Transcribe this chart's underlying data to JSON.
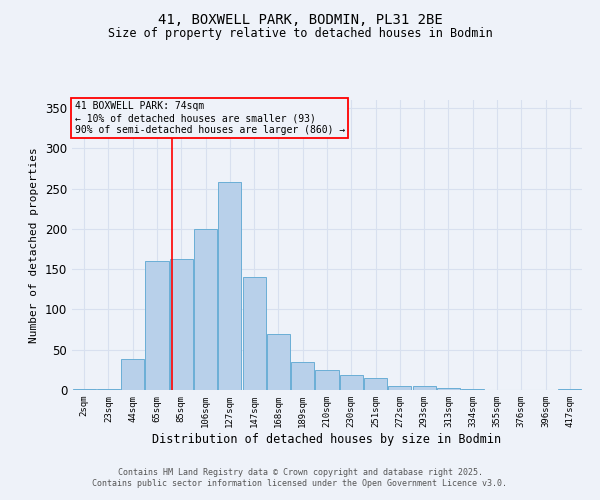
{
  "title1": "41, BOXWELL PARK, BODMIN, PL31 2BE",
  "title2": "Size of property relative to detached houses in Bodmin",
  "xlabel": "Distribution of detached houses by size in Bodmin",
  "ylabel": "Number of detached properties",
  "categories": [
    "2sqm",
    "23sqm",
    "44sqm",
    "65sqm",
    "85sqm",
    "106sqm",
    "127sqm",
    "147sqm",
    "168sqm",
    "189sqm",
    "210sqm",
    "230sqm",
    "251sqm",
    "272sqm",
    "293sqm",
    "313sqm",
    "334sqm",
    "355sqm",
    "376sqm",
    "396sqm",
    "417sqm"
  ],
  "values": [
    1,
    1,
    38,
    160,
    163,
    200,
    258,
    140,
    70,
    35,
    25,
    19,
    15,
    5,
    5,
    3,
    1,
    0,
    0,
    0,
    1
  ],
  "bar_color": "#b8d0ea",
  "bar_edge_color": "#6aaed6",
  "red_line_x": 3.62,
  "annotation_title": "41 BOXWELL PARK: 74sqm",
  "annotation_line2": "← 10% of detached houses are smaller (93)",
  "annotation_line3": "90% of semi-detached houses are larger (860) →",
  "ylim": [
    0,
    360
  ],
  "bg_color": "#eef2f9",
  "grid_color": "#d8e0ef",
  "footer1": "Contains HM Land Registry data © Crown copyright and database right 2025.",
  "footer2": "Contains public sector information licensed under the Open Government Licence v3.0."
}
